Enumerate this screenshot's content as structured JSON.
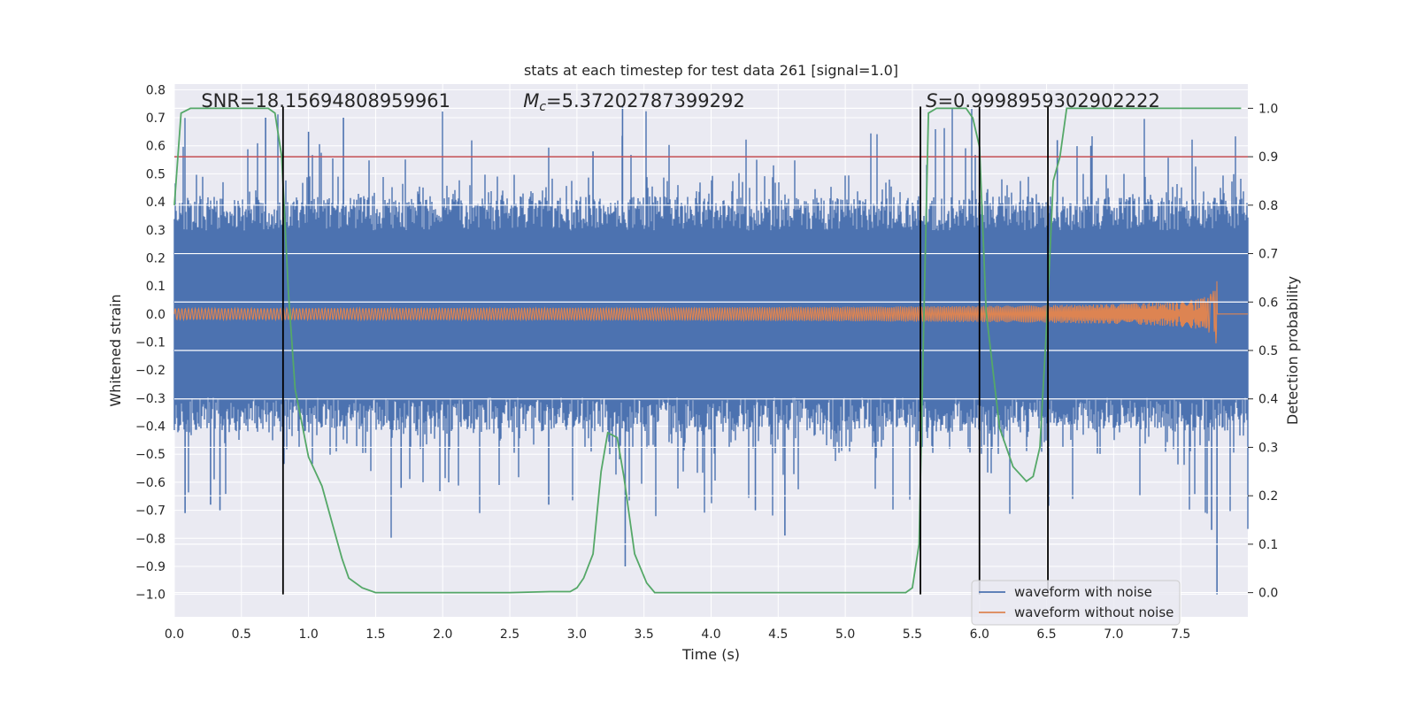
{
  "chart_data": {
    "type": "line",
    "title": "stats at each timestep for test data 261 [signal=1.0]",
    "xlabel": "Time (s)",
    "ylabel": "Whitened strain",
    "ylabel_right": "Detection probability",
    "xlim": [
      0.0,
      8.0
    ],
    "ylim": [
      -1.08,
      0.82
    ],
    "ylim_right": [
      -0.05,
      1.05
    ],
    "x_ticks": [
      "0.0",
      "0.5",
      "1.0",
      "1.5",
      "2.0",
      "2.5",
      "3.0",
      "3.5",
      "4.0",
      "4.5",
      "5.0",
      "5.5",
      "6.0",
      "6.5",
      "7.0",
      "7.5"
    ],
    "y_ticks": [
      "0.8",
      "0.7",
      "0.6",
      "0.5",
      "0.4",
      "0.3",
      "0.2",
      "0.1",
      "0.0",
      "−0.1",
      "−0.2",
      "−0.3",
      "−0.4",
      "−0.5",
      "−0.6",
      "−0.7",
      "−0.8",
      "−0.9",
      "−1.0"
    ],
    "y_right_ticks": [
      "1.0",
      "0.9",
      "0.8",
      "0.7",
      "0.6",
      "0.5",
      "0.4",
      "0.3",
      "0.2",
      "0.1",
      "0.0"
    ],
    "grid": true,
    "legend_position": "lower-right",
    "series": [
      {
        "name": "waveform with noise",
        "color": "#4c72b0",
        "axis": "left",
        "style": "noise band",
        "envelope": 0.35,
        "spikes_max": 0.74,
        "spikes_min": -1.0
      },
      {
        "name": "waveform without noise",
        "color": "#dd8452",
        "axis": "left",
        "style": "chirp",
        "x_start": 0.0,
        "x_merger": 7.77,
        "amp_start": 0.02,
        "amp_peak": 0.34,
        "freq_start": 40
      }
    ],
    "detection_probability": {
      "color": "#55a868",
      "axis": "right",
      "x": [
        0.0,
        0.05,
        0.12,
        0.7,
        0.75,
        0.8,
        0.85,
        0.9,
        1.0,
        1.1,
        1.2,
        1.25,
        1.3,
        1.4,
        1.5,
        2.0,
        2.5,
        2.8,
        2.95,
        3.0,
        3.05,
        3.12,
        3.18,
        3.23,
        3.3,
        3.35,
        3.43,
        3.52,
        3.58,
        3.7,
        4.5,
        5.0,
        5.45,
        5.5,
        5.55,
        5.58,
        5.62,
        5.68,
        5.9,
        5.95,
        6.0,
        6.05,
        6.15,
        6.25,
        6.35,
        6.4,
        6.45,
        6.5,
        6.55,
        6.6,
        6.65,
        7.0,
        7.5,
        7.95
      ],
      "y": [
        0.8,
        0.99,
        1.0,
        1.0,
        0.99,
        0.9,
        0.62,
        0.42,
        0.28,
        0.22,
        0.12,
        0.07,
        0.03,
        0.01,
        0.0,
        0.0,
        0.0,
        0.002,
        0.002,
        0.01,
        0.03,
        0.08,
        0.25,
        0.33,
        0.32,
        0.24,
        0.08,
        0.02,
        0.0,
        0.0,
        0.0,
        0.0,
        0.0,
        0.01,
        0.1,
        0.5,
        0.99,
        1.0,
        1.0,
        0.98,
        0.92,
        0.58,
        0.34,
        0.26,
        0.23,
        0.24,
        0.3,
        0.55,
        0.85,
        0.9,
        1.0,
        1.0,
        1.0,
        1.0
      ]
    },
    "threshold": {
      "value": 0.9,
      "axis": "right",
      "color": "#c44e52"
    },
    "vlines": {
      "x": [
        0.81,
        5.56,
        6.0,
        6.51
      ],
      "color": "#000000",
      "y_range": [
        -1.0,
        0.74
      ]
    },
    "annotations": [
      {
        "text": "SNR=18.15694808959961",
        "x": 0.2
      },
      {
        "text_prefix": "M",
        "text_sub": "c",
        "text": "=5.37202787399292",
        "x": 2.6
      },
      {
        "text_prefix": "S",
        "text": "=0.9998959302902222",
        "x": 5.6
      }
    ]
  }
}
